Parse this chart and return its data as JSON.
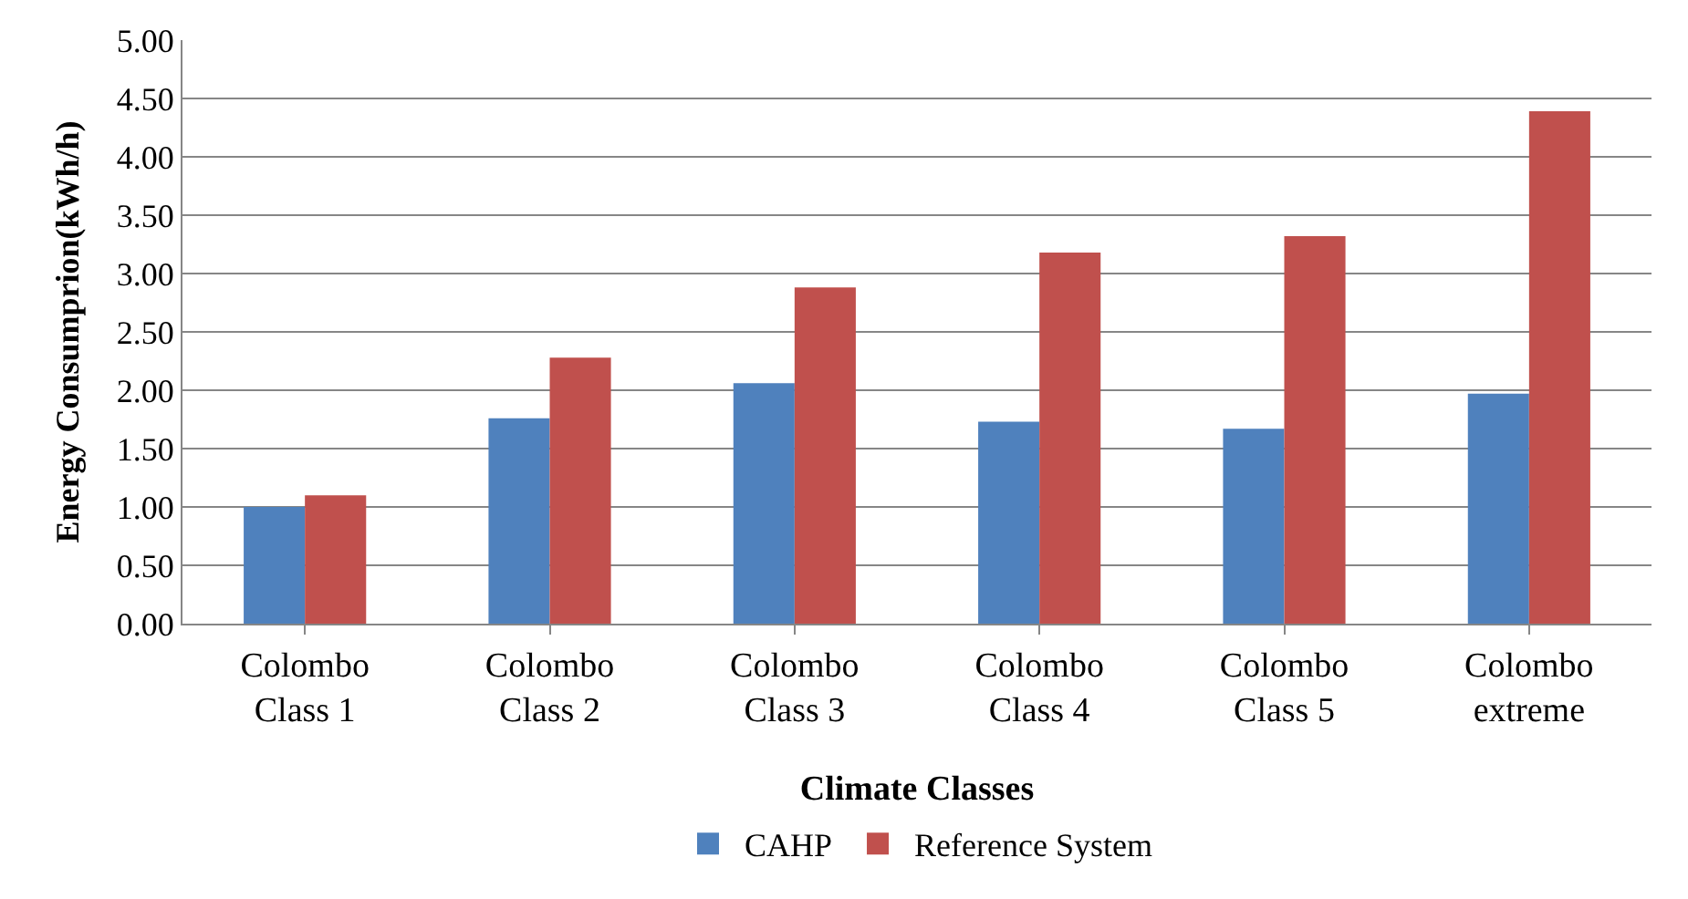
{
  "chart_data": {
    "type": "bar",
    "xlabel": "Climate Classes",
    "ylabel": "Energy Consumprion(kWh/h)",
    "categories": [
      "Colombo\nClass 1",
      "Colombo\nClass 2",
      "Colombo\nClass 3",
      "Colombo\nClass 4",
      "Colombo\nClass 5",
      "Colombo\nextreme"
    ],
    "series": [
      {
        "name": "CAHP",
        "color": "#4f81bd",
        "values": [
          1.0,
          1.76,
          2.06,
          1.73,
          1.67,
          1.97
        ]
      },
      {
        "name": "Reference System",
        "color": "#c0504d",
        "values": [
          1.1,
          2.28,
          2.88,
          3.18,
          3.32,
          4.39
        ]
      }
    ],
    "ylim": [
      0,
      5
    ],
    "yticks": [
      {
        "value": 0,
        "label": "0.00"
      },
      {
        "value": 0.5,
        "label": "0.50"
      },
      {
        "value": 1,
        "label": "1.00"
      },
      {
        "value": 1.5,
        "label": "1.50"
      },
      {
        "value": 2,
        "label": "2.00"
      },
      {
        "value": 2.5,
        "label": "2.50"
      },
      {
        "value": 3,
        "label": "3.00"
      },
      {
        "value": 3.5,
        "label": "3.50"
      },
      {
        "value": 4,
        "label": "4.00"
      },
      {
        "value": 4.5,
        "label": "4.50"
      },
      {
        "value": 5,
        "label": "5.00"
      }
    ],
    "grid": "y",
    "legend": "bottom"
  }
}
